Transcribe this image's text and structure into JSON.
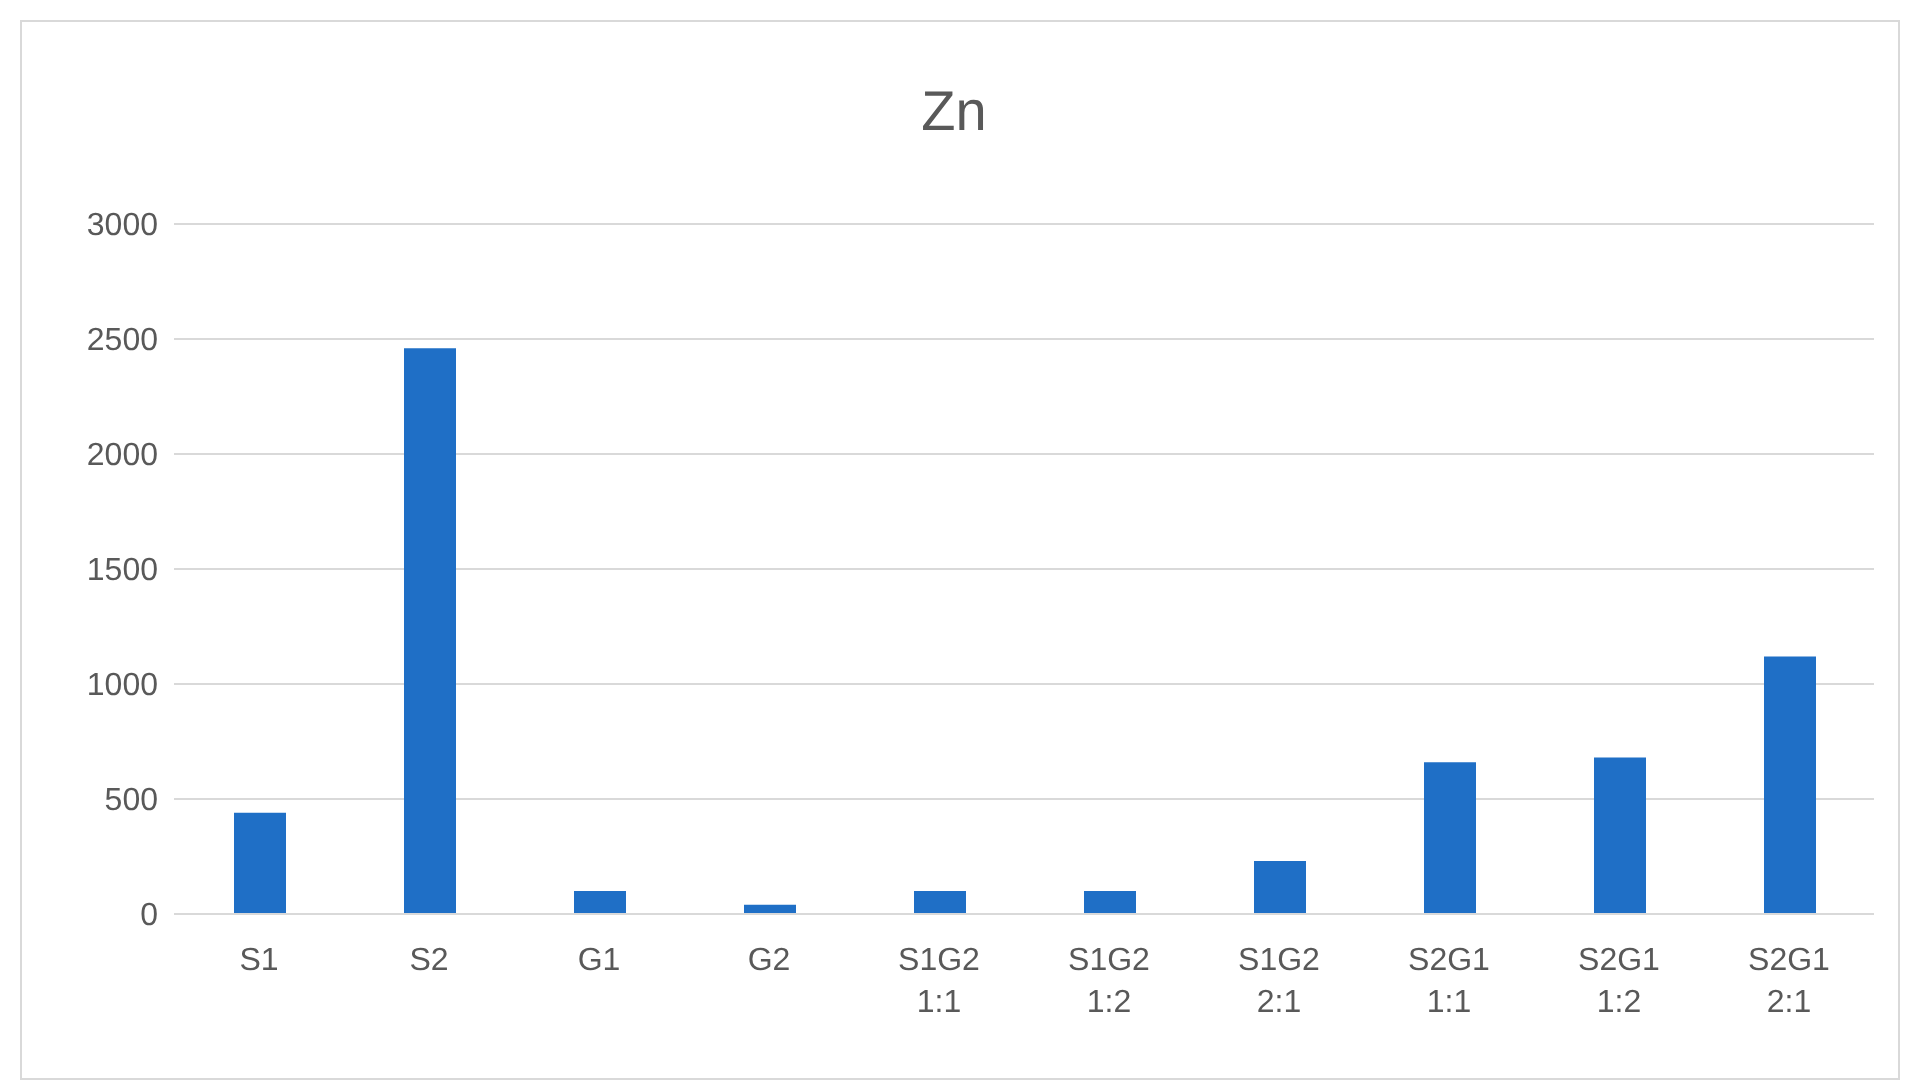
{
  "chart_data": {
    "type": "bar",
    "title": "Zn",
    "categories": [
      "S1",
      "S2",
      "G1",
      "G2",
      "S1G2 1:1",
      "S1G2 1:2",
      "S1G2 2:1",
      "S2G1 1:1",
      "S2G1 1:2",
      "S2G1 2:1"
    ],
    "values": [
      440,
      2460,
      100,
      40,
      100,
      100,
      230,
      660,
      680,
      1120
    ],
    "color": "#1f6fc6",
    "ylim": [
      0,
      3000
    ],
    "yticks": [
      0,
      500,
      1000,
      1500,
      2000,
      2500,
      3000
    ],
    "grid": "y",
    "legend": false
  }
}
